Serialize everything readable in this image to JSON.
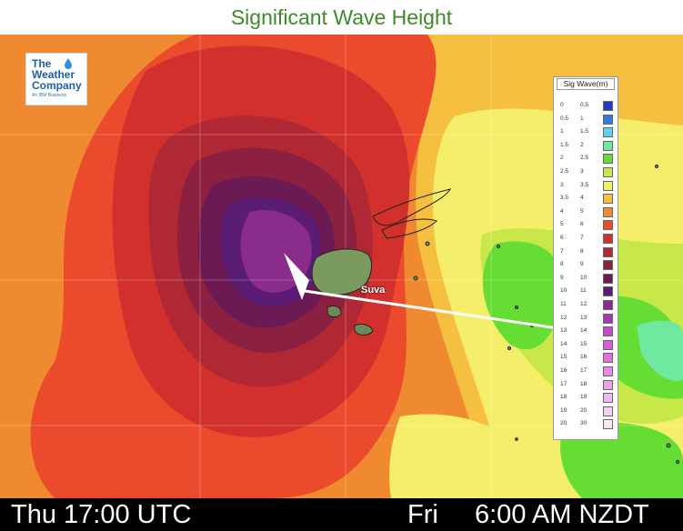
{
  "title": "Significant Wave Height",
  "logo": {
    "line1": "The",
    "line2": "Weather",
    "line3": "Company",
    "tagline": "An IBM Business",
    "color": "#1f5fa8"
  },
  "map": {
    "place_label": "Suva",
    "arrow_color": "#ffffff",
    "icons": [
      "storm-center-arrow-icon",
      "island-outline-icon"
    ]
  },
  "legend": {
    "title": "Sig Wave(m)",
    "rows": [
      {
        "lo": "0",
        "hi": "0.5",
        "color": "#1f3fbf"
      },
      {
        "lo": "0.5",
        "hi": "1",
        "color": "#2f7fd8"
      },
      {
        "lo": "1",
        "hi": "1.5",
        "color": "#5fd0f0"
      },
      {
        "lo": "1.5",
        "hi": "2",
        "color": "#6fe8a0"
      },
      {
        "lo": "2",
        "hi": "2.5",
        "color": "#66dd33"
      },
      {
        "lo": "2.5",
        "hi": "3",
        "color": "#c8e84a"
      },
      {
        "lo": "3",
        "hi": "3.5",
        "color": "#f5ee6a"
      },
      {
        "lo": "3.5",
        "hi": "4",
        "color": "#f5c040"
      },
      {
        "lo": "4",
        "hi": "5",
        "color": "#f08a30"
      },
      {
        "lo": "5",
        "hi": "6",
        "color": "#ec4a2c"
      },
      {
        "lo": "6",
        "hi": "7",
        "color": "#d2302c"
      },
      {
        "lo": "7",
        "hi": "8",
        "color": "#b02834"
      },
      {
        "lo": "8",
        "hi": "9",
        "color": "#8c2040"
      },
      {
        "lo": "9",
        "hi": "10",
        "color": "#6c1a54"
      },
      {
        "lo": "10",
        "hi": "11",
        "color": "#5a1c74"
      },
      {
        "lo": "11",
        "hi": "12",
        "color": "#8a2c8c"
      },
      {
        "lo": "12",
        "hi": "13",
        "color": "#a83aa8"
      },
      {
        "lo": "13",
        "hi": "14",
        "color": "#c84ac4"
      },
      {
        "lo": "14",
        "hi": "15",
        "color": "#dc5ad8"
      },
      {
        "lo": "15",
        "hi": "16",
        "color": "#e470e0"
      },
      {
        "lo": "16",
        "hi": "17",
        "color": "#e888e4"
      },
      {
        "lo": "17",
        "hi": "18",
        "color": "#eca0e8"
      },
      {
        "lo": "18",
        "hi": "19",
        "color": "#f0b8ec"
      },
      {
        "lo": "19",
        "hi": "20",
        "color": "#f4d0f0"
      },
      {
        "lo": "20",
        "hi": "30",
        "color": "#f8e8f6"
      }
    ]
  },
  "footer": {
    "time_utc": "Thu 17:00 UTC",
    "local_day": "Fri",
    "local_time": "6:00 AM NZDT"
  }
}
